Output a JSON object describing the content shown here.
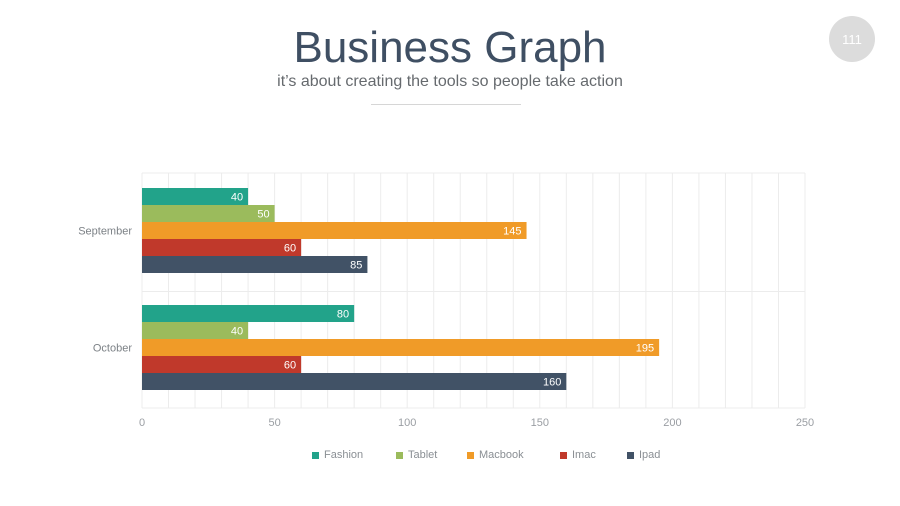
{
  "page_number": "111",
  "title": "Business Graph",
  "subtitle": "it’s about creating the tools so people take action",
  "chart_data": {
    "type": "bar",
    "orientation": "horizontal",
    "categories": [
      "September",
      "October"
    ],
    "series": [
      {
        "name": "Fashion",
        "color": "#22a38a",
        "values": [
          40,
          80
        ]
      },
      {
        "name": "Tablet",
        "color": "#9bbb5c",
        "values": [
          50,
          40
        ]
      },
      {
        "name": "Macbook",
        "color": "#f09b28",
        "values": [
          145,
          195
        ]
      },
      {
        "name": "Imac",
        "color": "#c0392b",
        "values": [
          60,
          60
        ]
      },
      {
        "name": "Ipad",
        "color": "#415266",
        "values": [
          85,
          160
        ]
      }
    ],
    "xlim": [
      0,
      250
    ],
    "x_ticks": [
      0,
      50,
      100,
      150,
      200,
      250
    ],
    "data_labels": true,
    "grid": true,
    "legend_position": "bottom"
  }
}
